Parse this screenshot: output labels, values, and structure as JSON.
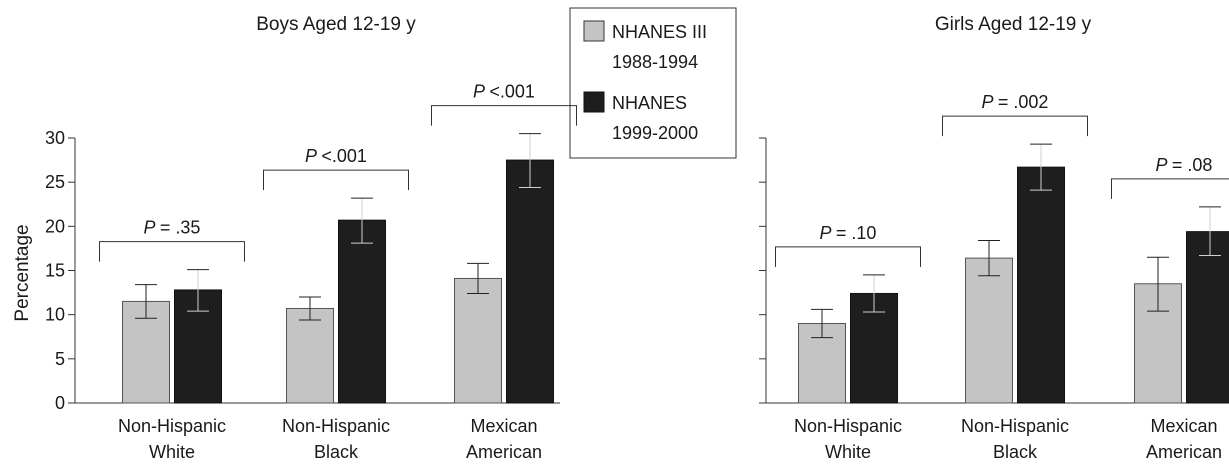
{
  "legend": {
    "entries": [
      {
        "label_line1": "NHANES III",
        "label_line2": "1988-1994",
        "color": "#c4c4c4"
      },
      {
        "label_line1": "NHANES",
        "label_line2": "1999-2000",
        "color": "#1e1e1e"
      }
    ]
  },
  "chart_data": [
    {
      "type": "bar",
      "title": "Boys Aged 12-19 y",
      "ylabel": "Percentage",
      "xlabel": "",
      "ylim": [
        0,
        30
      ],
      "yticks": [
        0,
        5,
        10,
        15,
        20,
        25,
        30
      ],
      "grid": false,
      "categories": [
        {
          "line1": "Non-Hispanic",
          "line2": "White"
        },
        {
          "line1": "Non-Hispanic",
          "line2": "Black"
        },
        {
          "line1": "Mexican",
          "line2": "American"
        }
      ],
      "series": [
        {
          "values": [
            11.5,
            10.7,
            14.1
          ],
          "err_low": [
            9.6,
            9.4,
            12.4
          ],
          "err_high": [
            13.4,
            12.0,
            15.8
          ]
        },
        {
          "values": [
            12.8,
            20.7,
            27.5
          ],
          "err_low": [
            10.4,
            18.1,
            24.4
          ],
          "err_high": [
            15.1,
            23.2,
            30.5
          ]
        }
      ],
      "pvalues": [
        "= .35",
        "<.001",
        "<.001"
      ]
    },
    {
      "type": "bar",
      "title": "Girls Aged 12-19 y",
      "ylabel": "",
      "xlabel": "",
      "ylim": [
        0,
        30
      ],
      "yticks": [
        0,
        5,
        10,
        15,
        20,
        25,
        30
      ],
      "grid": false,
      "categories": [
        {
          "line1": "Non-Hispanic",
          "line2": "White"
        },
        {
          "line1": "Non-Hispanic",
          "line2": "Black"
        },
        {
          "line1": "Mexican",
          "line2": "American"
        }
      ],
      "series": [
        {
          "values": [
            9.0,
            16.4,
            13.5
          ],
          "err_low": [
            7.4,
            14.4,
            10.4
          ],
          "err_high": [
            10.6,
            18.4,
            16.5
          ]
        },
        {
          "values": [
            12.4,
            26.7,
            19.4
          ],
          "err_low": [
            10.3,
            24.1,
            16.7
          ],
          "err_high": [
            14.5,
            29.3,
            22.2
          ]
        }
      ],
      "pvalues": [
        "= .10",
        "= .002",
        "= .08"
      ]
    }
  ]
}
